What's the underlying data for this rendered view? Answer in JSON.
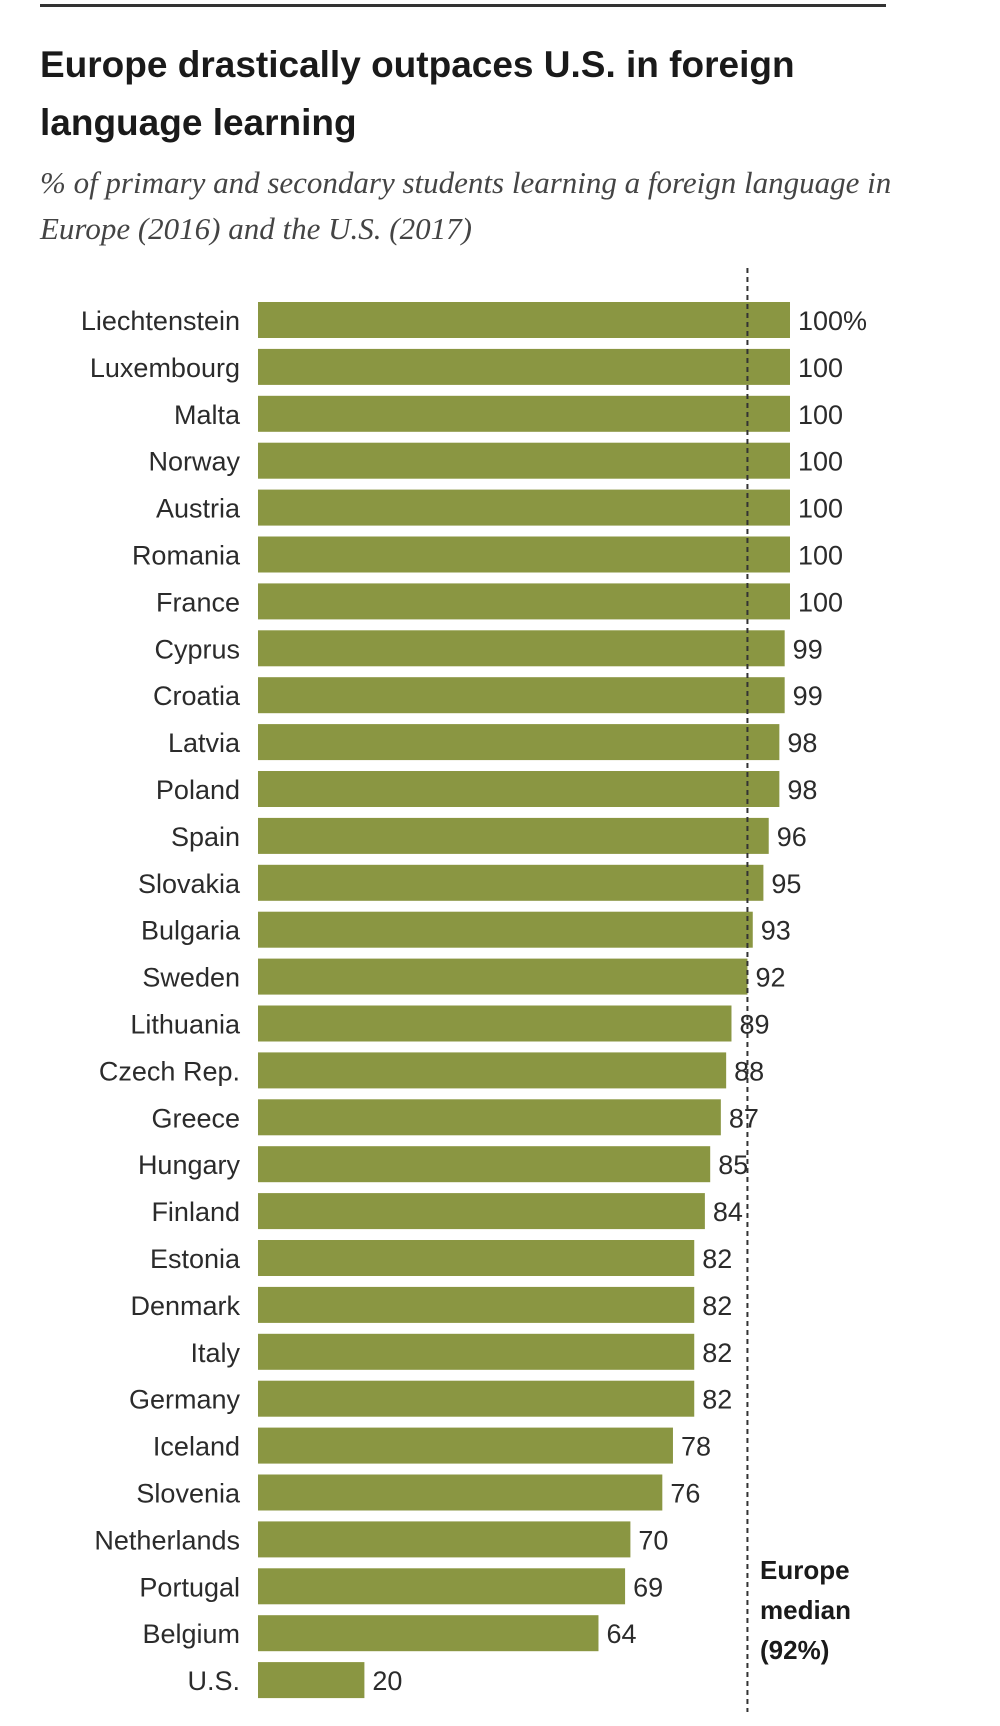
{
  "title": "Europe drastically outpaces U.S. in foreign language learning",
  "subtitle": "% of primary and secondary students learning a foreign language in Europe (2016) and the U.S. (2017)",
  "median_label": {
    "line1": "Europe",
    "line2": "median",
    "line3": "(92%)"
  },
  "colors": {
    "bar": "#8a9642",
    "median_line": "#333333"
  },
  "chart_data": {
    "type": "bar",
    "orientation": "horizontal",
    "title": "Europe drastically outpaces U.S. in foreign language learning",
    "subtitle": "% of primary and secondary students learning a foreign language in Europe (2016) and the U.S. (2017)",
    "categories": [
      "Liechtenstein",
      "Luxembourg",
      "Malta",
      "Norway",
      "Austria",
      "Romania",
      "France",
      "Cyprus",
      "Croatia",
      "Latvia",
      "Poland",
      "Spain",
      "Slovakia",
      "Bulgaria",
      "Sweden",
      "Lithuania",
      "Czech Rep.",
      "Greece",
      "Hungary",
      "Finland",
      "Estonia",
      "Denmark",
      "Italy",
      "Germany",
      "Iceland",
      "Slovenia",
      "Netherlands",
      "Portugal",
      "Belgium",
      "U.S."
    ],
    "values": [
      100,
      100,
      100,
      100,
      100,
      100,
      100,
      99,
      99,
      98,
      98,
      96,
      95,
      93,
      92,
      89,
      88,
      87,
      85,
      84,
      82,
      82,
      82,
      82,
      78,
      76,
      70,
      69,
      64,
      20
    ],
    "value_labels": [
      "100%",
      "100",
      "100",
      "100",
      "100",
      "100",
      "100",
      "99",
      "99",
      "98",
      "98",
      "96",
      "95",
      "93",
      "92",
      "89",
      "88",
      "87",
      "85",
      "84",
      "82",
      "82",
      "82",
      "82",
      "78",
      "76",
      "70",
      "69",
      "64",
      "20"
    ],
    "reference_line": {
      "value": 92,
      "style": "dashed"
    },
    "xlim": [
      0,
      100
    ],
    "grid": false
  }
}
